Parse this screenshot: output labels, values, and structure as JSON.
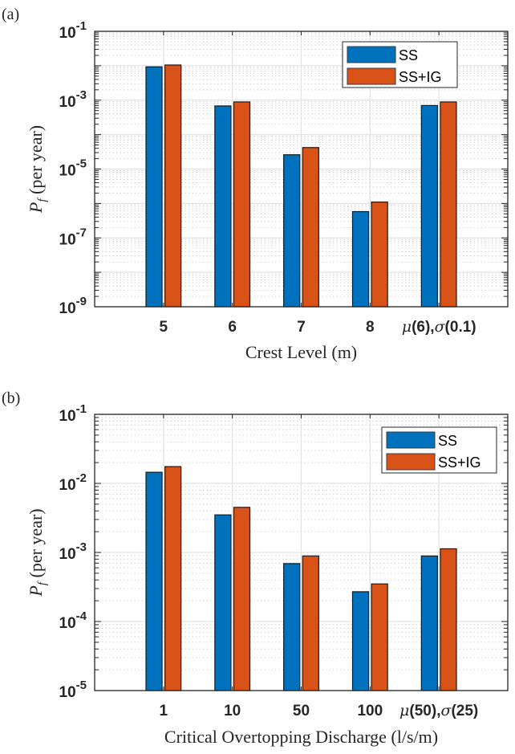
{
  "chart_data": [
    {
      "type": "bar",
      "panel_label": "(a)",
      "title": "",
      "xlabel": "Crest Level (m)",
      "ylabel": "P_f (per year)",
      "yscale": "log",
      "ylim": [
        1e-09,
        0.1
      ],
      "yticks": [
        1e-09,
        1e-07,
        1e-05,
        0.001,
        0.1
      ],
      "ytick_labels": [
        {
          "base": "10",
          "exp": "-9"
        },
        {
          "base": "10",
          "exp": "-7"
        },
        {
          "base": "10",
          "exp": "-5"
        },
        {
          "base": "10",
          "exp": "-3"
        },
        {
          "base": "10",
          "exp": "-1"
        }
      ],
      "categories": [
        "5",
        "6",
        "7",
        "8",
        "μ(6),σ(0.1)"
      ],
      "category_parts": [
        [
          {
            "t": "5"
          }
        ],
        [
          {
            "t": "6"
          }
        ],
        [
          {
            "t": "7"
          }
        ],
        [
          {
            "t": "8"
          }
        ],
        [
          {
            "t": "μ",
            "it": true
          },
          {
            "t": "(6),"
          },
          {
            "t": "σ",
            "it": true
          },
          {
            "t": "(0.1)"
          }
        ]
      ],
      "series": [
        {
          "name": "SS",
          "color": "#0072BD",
          "values": [
            0.0093,
            0.00068,
            2.6e-05,
            5.8e-07,
            0.0007
          ]
        },
        {
          "name": "SS+IG",
          "color": "#D95319",
          "values": [
            0.0105,
            0.00089,
            4.2e-05,
            1.1e-06,
            0.00089
          ]
        }
      ],
      "grid": true,
      "minor_grid": true,
      "legend_position": "top-right"
    },
    {
      "type": "bar",
      "panel_label": "(b)",
      "title": "",
      "xlabel": "Critical Overtopping Discharge (l/s/m)",
      "ylabel": "P_f (per year)",
      "yscale": "log",
      "ylim": [
        1e-05,
        0.1
      ],
      "yticks": [
        1e-05,
        0.0001,
        0.001,
        0.01,
        0.1
      ],
      "ytick_labels": [
        {
          "base": "10",
          "exp": "-5"
        },
        {
          "base": "10",
          "exp": "-4"
        },
        {
          "base": "10",
          "exp": "-3"
        },
        {
          "base": "10",
          "exp": "-2"
        },
        {
          "base": "10",
          "exp": "-1"
        }
      ],
      "categories": [
        "1",
        "10",
        "50",
        "100",
        "μ(50),σ(25)"
      ],
      "category_parts": [
        [
          {
            "t": "1"
          }
        ],
        [
          {
            "t": "10"
          }
        ],
        [
          {
            "t": "50"
          }
        ],
        [
          {
            "t": "100"
          }
        ],
        [
          {
            "t": "μ",
            "it": true
          },
          {
            "t": "(50),"
          },
          {
            "t": "σ",
            "it": true
          },
          {
            "t": "(25)"
          }
        ]
      ],
      "series": [
        {
          "name": "SS",
          "color": "#0072BD",
          "values": [
            0.0145,
            0.0035,
            0.00069,
            0.00027,
            0.00089
          ]
        },
        {
          "name": "SS+IG",
          "color": "#D95319",
          "values": [
            0.0175,
            0.0045,
            0.00089,
            0.00035,
            0.00113
          ]
        }
      ],
      "grid": true,
      "minor_grid": true,
      "legend_position": "top-right"
    }
  ],
  "ylabel_parts": {
    "main": "P",
    "sub": "f",
    "rest": " (per year)"
  }
}
